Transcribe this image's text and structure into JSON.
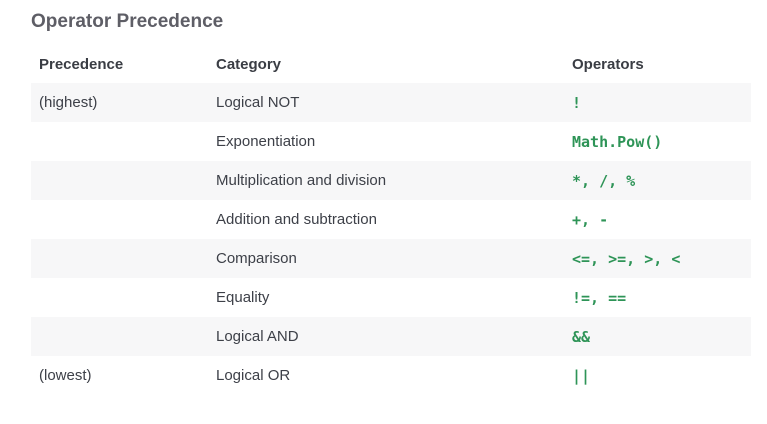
{
  "page": {
    "title": "Operator Precedence"
  },
  "table": {
    "headers": {
      "precedence": "Precedence",
      "category": "Category",
      "operators": "Operators"
    },
    "rows": [
      {
        "precedence": "(highest)",
        "category": "Logical NOT",
        "operators": "!"
      },
      {
        "precedence": "",
        "category": "Exponentiation",
        "operators": "Math.Pow()"
      },
      {
        "precedence": "",
        "category": "Multiplication and division",
        "operators": "*, /, %"
      },
      {
        "precedence": "",
        "category": "Addition and subtraction",
        "operators": "+, -"
      },
      {
        "precedence": "",
        "category": "Comparison",
        "operators": "<=, >=, >, <"
      },
      {
        "precedence": "",
        "category": "Equality",
        "operators": "!=, =="
      },
      {
        "precedence": "",
        "category": "Logical AND",
        "operators": "&&"
      },
      {
        "precedence": "(lowest)",
        "category": "Logical OR",
        "operators": "||"
      }
    ]
  },
  "colors": {
    "operator_text": "#2e9457",
    "stripe": "#f7f7f8",
    "title": "#5e5e66"
  }
}
